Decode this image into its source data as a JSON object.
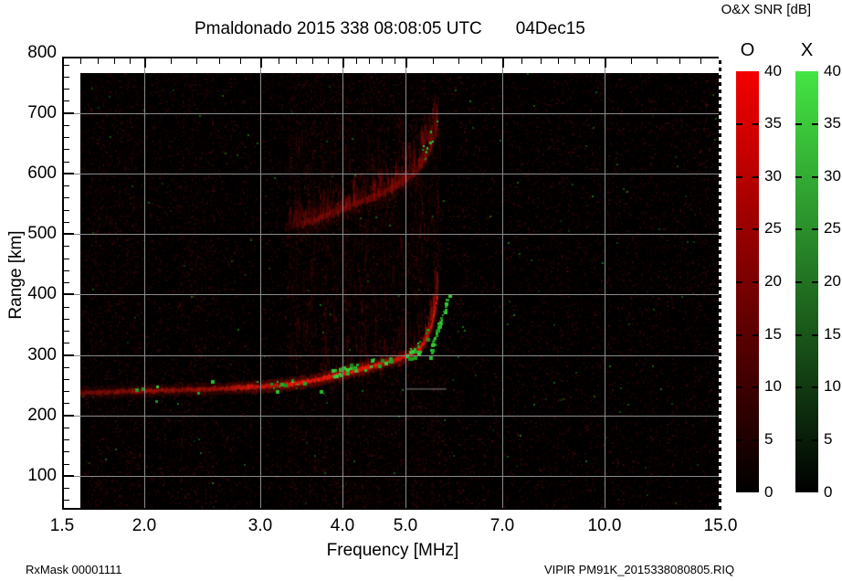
{
  "header": {
    "title": "Pmaldonado 2015 338 08:08:05 UTC",
    "date_label": "04Dec15",
    "colorbar_title": "O&X SNR [dB]"
  },
  "footer": {
    "rx_mask": "RxMask 00001111",
    "file_label": "VIPIR  PM91K_2015338080805.RIQ"
  },
  "colors": {
    "background": "#ffffff",
    "plot_bg": "#000000",
    "grid": "#8a8a8a",
    "text": "#000000",
    "o_mode_red": "#f40000",
    "x_mode_green": "#44e544"
  },
  "chart_data": {
    "type": "heatmap",
    "title": "Pmaldonado 2015 338 08:08:05 UTC",
    "date_label": "04Dec15",
    "xlabel": "Frequency [MHz]",
    "ylabel": "Range [km]",
    "x_scale": "log",
    "xlim": [
      1.5,
      15
    ],
    "ylim": [
      55,
      800
    ],
    "x_tick_labels": [
      "1.5",
      "2.0",
      "3.0",
      "4.0",
      "5.0",
      "7.0",
      "10.0",
      "15.0"
    ],
    "x_ticks": [
      1.5,
      2.0,
      3.0,
      4.0,
      5.0,
      7.0,
      10.0,
      15.0
    ],
    "x_minor_ticks": [
      1.6,
      1.7,
      1.8,
      1.9,
      2.2,
      2.4,
      2.6,
      2.8,
      3.2,
      3.4,
      3.6,
      3.8,
      4.2,
      4.4,
      4.6,
      4.8,
      5.5,
      6.0,
      6.5,
      7.5,
      8.0,
      8.5,
      9.0,
      9.5,
      11,
      12,
      13,
      14
    ],
    "y_ticks": [
      100,
      200,
      300,
      400,
      500,
      600,
      700,
      800
    ],
    "y_minor_step": 20,
    "grid": true,
    "colorbar": {
      "title": "O&X SNR [dB]",
      "min": 0,
      "max": 40,
      "tick_step": 5,
      "ticks": [
        0,
        5,
        10,
        15,
        20,
        25,
        30,
        35,
        40
      ],
      "bars": [
        {
          "label": "O",
          "color_top": "#f40000",
          "color_bottom": "#000000"
        },
        {
          "label": "X",
          "color_top": "#44e544",
          "color_bottom": "#000000"
        }
      ]
    },
    "raster_start_mhz": 1.6,
    "o_trace_f2": {
      "name": "O-mode F-region trace",
      "critical_frequency_mhz": 5.56,
      "points_f_km": [
        [
          1.6,
          238
        ],
        [
          2.0,
          241
        ],
        [
          2.5,
          244
        ],
        [
          3.0,
          248
        ],
        [
          3.3,
          252
        ],
        [
          3.6,
          258
        ],
        [
          4.0,
          270
        ],
        [
          4.3,
          278
        ],
        [
          4.6,
          287
        ],
        [
          4.9,
          295
        ],
        [
          5.1,
          303
        ],
        [
          5.25,
          313
        ],
        [
          5.35,
          327
        ],
        [
          5.45,
          350
        ],
        [
          5.52,
          378
        ],
        [
          5.56,
          398
        ]
      ]
    },
    "o_trace_second_hop": {
      "name": "O-mode second-hop trace",
      "points_f_km": [
        [
          3.25,
          512
        ],
        [
          3.6,
          522
        ],
        [
          4.0,
          543
        ],
        [
          4.4,
          560
        ],
        [
          4.8,
          578
        ],
        [
          5.0,
          590
        ],
        [
          5.2,
          607
        ],
        [
          5.35,
          625
        ],
        [
          5.45,
          648
        ],
        [
          5.55,
          672
        ]
      ]
    },
    "x_trace_clusters": [
      {
        "name": "near-trace-A",
        "f1": 3.85,
        "f2": 4.78,
        "off1": -13,
        "off2": 3,
        "count": 34
      },
      {
        "name": "near-trace-B",
        "f1": 4.95,
        "f2": 5.38,
        "off1": -11,
        "off2": 7,
        "count": 22
      },
      {
        "name": "near-trace-F",
        "f1": 2.9,
        "f2": 3.45,
        "off1": -9,
        "off2": 5,
        "count": 9
      },
      {
        "name": "singles",
        "f1": 1.62,
        "f2": 3.8,
        "off1": -22,
        "off2": 22,
        "count": 10
      }
    ],
    "x_edge_arc": {
      "f_start": 5.42,
      "f_end": 5.82,
      "km_start": 293,
      "km_end": 402,
      "count": 48
    },
    "x_hop_dots": {
      "f1": 5.25,
      "f2": 5.58,
      "count": 10
    },
    "noise": {
      "base_density": 0.3,
      "bands": [
        {
          "f1": 1.65,
          "f2": 1.95,
          "gain": 1.5
        },
        {
          "f1": 2.25,
          "f2": 2.55,
          "gain": 1.35
        },
        {
          "f1": 3.3,
          "f2": 5.65,
          "gain": 1.6
        }
      ],
      "green_speck_count": 150,
      "vertical_streaks": 620,
      "hop_streaks": 260
    },
    "artifact_line": {
      "x1_mhz": 5.0,
      "x2_mhz": 5.75,
      "km": 245
    }
  }
}
